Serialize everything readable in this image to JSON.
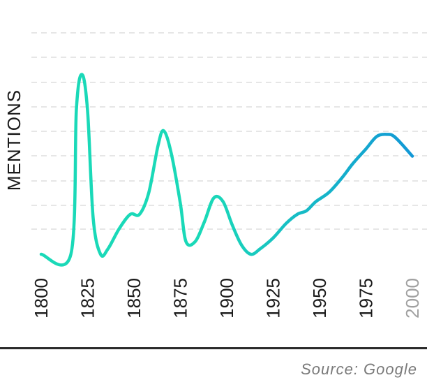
{
  "chart_data": {
    "type": "line",
    "title": "",
    "xlabel": "",
    "ylabel": "MENTIONS",
    "source": "Source: Google",
    "xlim": [
      1800,
      2010
    ],
    "ylim": [
      0,
      100
    ],
    "grid": true,
    "x_ticks": [
      {
        "value": 1800,
        "label": "1800"
      },
      {
        "value": 1825,
        "label": "1825"
      },
      {
        "value": 1850,
        "label": "1850"
      },
      {
        "value": 1875,
        "label": "1875"
      },
      {
        "value": 1900,
        "label": "1900"
      },
      {
        "value": 1925,
        "label": "1925"
      },
      {
        "value": 1950,
        "label": "1950"
      },
      {
        "value": 1975,
        "label": "1975"
      },
      {
        "value": 2000,
        "label": "2000"
      }
    ],
    "colors": {
      "line_start": "#1ad9b8",
      "line_end": "#1298d6",
      "grid": "#dddddd",
      "tick_label": "#1a1a1a",
      "tick_label_faded": "#a0a0a0"
    },
    "series": [
      {
        "points": [
          [
            1800,
            0
          ],
          [
            1816,
            0
          ],
          [
            1819,
            80
          ],
          [
            1822,
            99
          ],
          [
            1825,
            79
          ],
          [
            1828,
            20
          ],
          [
            1832,
            0
          ],
          [
            1836,
            3
          ],
          [
            1842,
            14
          ],
          [
            1848,
            22
          ],
          [
            1853,
            22
          ],
          [
            1858,
            34
          ],
          [
            1863,
            60
          ],
          [
            1866,
            68
          ],
          [
            1870,
            56
          ],
          [
            1875,
            28
          ],
          [
            1878,
            7
          ],
          [
            1883,
            7
          ],
          [
            1888,
            18
          ],
          [
            1893,
            31
          ],
          [
            1898,
            29
          ],
          [
            1903,
            16
          ],
          [
            1908,
            5
          ],
          [
            1913,
            0
          ],
          [
            1918,
            3
          ],
          [
            1925,
            9
          ],
          [
            1932,
            17
          ],
          [
            1938,
            22
          ],
          [
            1943,
            24
          ],
          [
            1948,
            29
          ],
          [
            1955,
            34
          ],
          [
            1962,
            42
          ],
          [
            1968,
            50
          ],
          [
            1975,
            58
          ],
          [
            1981,
            65
          ],
          [
            1987,
            66
          ],
          [
            1990,
            65
          ],
          [
            1994,
            61
          ],
          [
            2000,
            54
          ]
        ]
      }
    ]
  }
}
